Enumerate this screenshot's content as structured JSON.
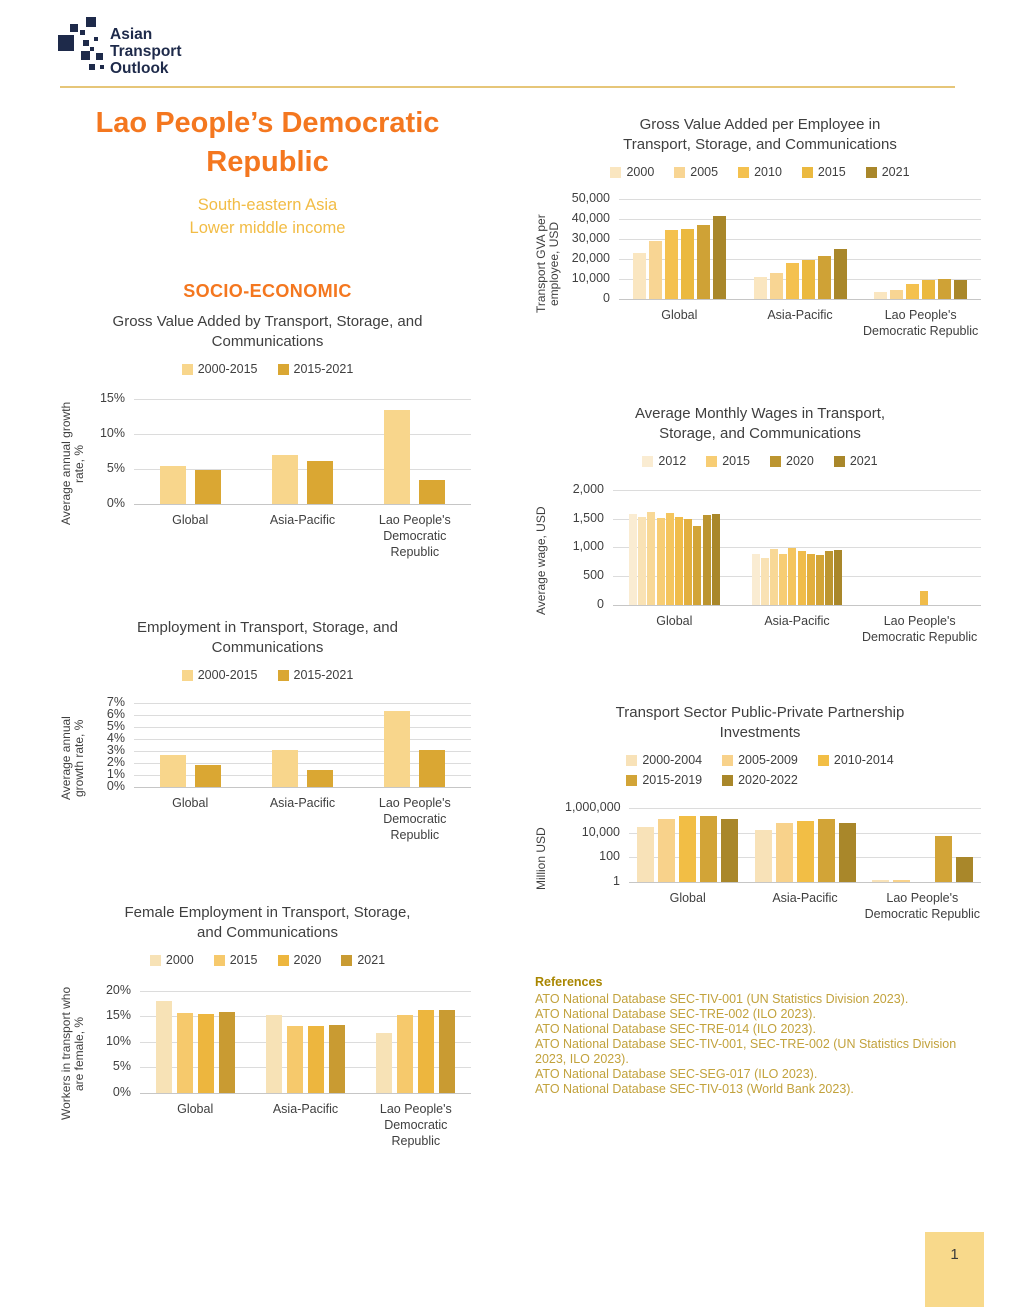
{
  "page": {
    "page_number": "1"
  },
  "header": {
    "logo_lines": [
      "Asian",
      "Transport",
      "Outlook"
    ]
  },
  "title_block": {
    "title": "Lao People’s Democratic Republic",
    "region": "South-eastern Asia",
    "income": "Lower middle income",
    "section": "SOCIO-ECONOMIC"
  },
  "colors": {
    "title_orange": "#F4771F",
    "subtitle_gold": "#F2BC45",
    "logo_navy": "#1E2A4A",
    "rule_gold": "#E6C679",
    "reference_heading": "#A98600",
    "reference_gold": "#C2A23C",
    "grid": "#DCDCDC",
    "axis_text": "#3F3F3F",
    "page_tab_bg": "#F8D98B"
  },
  "chart_data": [
    {
      "type": "bar",
      "title": "Gross Value Added by Transport, Storage, and Communications",
      "ylabel": "Average annual growth rate, %",
      "scale": "linear",
      "ylim": [
        0,
        16
      ],
      "grid": true,
      "legend_position": "top",
      "ticks": [
        {
          "v": 0,
          "label": "0%"
        },
        {
          "v": 5,
          "label": "5%"
        },
        {
          "v": 10,
          "label": "10%"
        },
        {
          "v": 15,
          "label": "15%"
        }
      ],
      "categories": [
        "Global",
        "Asia-Pacific",
        "Lao People's Democratic Republic"
      ],
      "series": [
        {
          "name": "2000-2015",
          "color": "#F8D68C",
          "values": [
            5.5,
            7.0,
            13.4
          ]
        },
        {
          "name": "2015-2021",
          "color": "#DAA733",
          "values": [
            4.9,
            6.1,
            3.4
          ]
        }
      ],
      "legend": [
        {
          "label": "2000-2015",
          "color": "#F8D68C"
        },
        {
          "label": "2015-2021",
          "color": "#DAA733"
        }
      ]
    },
    {
      "type": "bar",
      "title": "Employment in Transport, Storage, and Communications",
      "ylabel": "Average annual growth rate, %",
      "scale": "linear",
      "ylim": [
        0,
        7.4
      ],
      "grid": true,
      "legend_position": "top",
      "ticks": [
        {
          "v": 0,
          "label": "0%"
        },
        {
          "v": 1,
          "label": "1%"
        },
        {
          "v": 2,
          "label": "2%"
        },
        {
          "v": 3,
          "label": "3%"
        },
        {
          "v": 4,
          "label": "4%"
        },
        {
          "v": 5,
          "label": "5%"
        },
        {
          "v": 6,
          "label": "6%"
        },
        {
          "v": 7,
          "label": "7%"
        }
      ],
      "categories": [
        "Global",
        "Asia-Pacific",
        "Lao People's Democratic Republic"
      ],
      "series": [
        {
          "name": "2000-2015",
          "color": "#F8D68C",
          "values": [
            2.7,
            3.1,
            6.3
          ]
        },
        {
          "name": "2015-2021",
          "color": "#DAA733",
          "values": [
            1.8,
            1.4,
            3.1
          ]
        }
      ],
      "legend": [
        {
          "label": "2000-2015",
          "color": "#F8D68C"
        },
        {
          "label": "2015-2021",
          "color": "#DAA733"
        }
      ]
    },
    {
      "type": "bar",
      "title": "Female Employment in Transport, Storage, and Communications",
      "ylabel": "Workers in transport who are female, %",
      "scale": "linear",
      "ylim": [
        0,
        21.5
      ],
      "grid": true,
      "legend_position": "top",
      "ticks": [
        {
          "v": 0,
          "label": "0%"
        },
        {
          "v": 5,
          "label": "5%"
        },
        {
          "v": 10,
          "label": "10%"
        },
        {
          "v": 15,
          "label": "15%"
        },
        {
          "v": 20,
          "label": "20%"
        }
      ],
      "categories": [
        "Global",
        "Asia-Pacific",
        "Lao People's Democratic Republic"
      ],
      "series": [
        {
          "name": "2000",
          "color": "#F7E2B6",
          "values": [
            17.9,
            15.2,
            11.7
          ]
        },
        {
          "name": "2015",
          "color": "#F6C96C",
          "values": [
            15.6,
            13.1,
            15.3
          ]
        },
        {
          "name": "2020",
          "color": "#EDB63E",
          "values": [
            15.5,
            13.1,
            16.3
          ]
        },
        {
          "name": "2021",
          "color": "#C99B32",
          "values": [
            15.8,
            13.3,
            16.2
          ]
        }
      ],
      "legend": [
        {
          "label": "2000",
          "color": "#F7E2B6"
        },
        {
          "label": "2015",
          "color": "#F6C96C"
        },
        {
          "label": "2020",
          "color": "#EDB63E"
        },
        {
          "label": "2021",
          "color": "#C99B32"
        }
      ]
    },
    {
      "type": "bar",
      "title": "Gross Value Added per Employee in Transport, Storage, and Communications",
      "ylabel": "Transport GVA per employee, USD",
      "scale": "linear",
      "ylim": [
        0,
        52000
      ],
      "grid": true,
      "legend_position": "top",
      "ticks": [
        {
          "v": 0,
          "label": "0"
        },
        {
          "v": 10000,
          "label": "10,000"
        },
        {
          "v": 20000,
          "label": "20,000"
        },
        {
          "v": 30000,
          "label": "30,000"
        },
        {
          "v": 40000,
          "label": "40,000"
        },
        {
          "v": 50000,
          "label": "50,000"
        }
      ],
      "categories": [
        "Global",
        "Asia-Pacific",
        "Lao People's Democratic Republic"
      ],
      "series": [
        {
          "name": "2000",
          "color": "#FAE6C0",
          "values": [
            23000,
            11200,
            3300
          ]
        },
        {
          "name": "2005",
          "color": "#F8D593",
          "values": [
            29000,
            12800,
            4600
          ]
        },
        {
          "name": "2010",
          "color": "#F4C14F",
          "values": [
            34500,
            18000,
            7700
          ]
        },
        {
          "name": "2015",
          "color": "#EBB93F",
          "values": [
            35000,
            19300,
            9500
          ]
        },
        {
          "name": "",
          "color": "#CFA236",
          "values": [
            37000,
            21300,
            10000
          ]
        },
        {
          "name": "2021",
          "color": "#A9872A",
          "values": [
            41500,
            25000,
            9600
          ]
        }
      ],
      "legend": [
        {
          "label": "2000",
          "color": "#FAE6C0"
        },
        {
          "label": "2005",
          "color": "#F8D593"
        },
        {
          "label": "2010",
          "color": "#F4C14F"
        },
        {
          "label": "2015",
          "color": "#EBB93F"
        },
        {
          "label": "2021",
          "color": "#A9872A"
        }
      ]
    },
    {
      "type": "bar",
      "title": "Average Monthly Wages in Transport, Storage, and Communications",
      "ylabel": "Average wage, USD",
      "scale": "linear",
      "ylim": [
        0,
        2100
      ],
      "grid": true,
      "legend_position": "top",
      "ticks": [
        {
          "v": 0,
          "label": "0"
        },
        {
          "v": 500,
          "label": "500"
        },
        {
          "v": 1000,
          "label": "1,000"
        },
        {
          "v": 1500,
          "label": "1,500"
        },
        {
          "v": 2000,
          "label": "2,000"
        }
      ],
      "categories": [
        "Global",
        "Asia-Pacific",
        "Lao People's Democratic Republic"
      ],
      "series": [
        {
          "name": "2012",
          "color": "#FAECD2",
          "values": [
            1580,
            880,
            null
          ]
        },
        {
          "name": "",
          "color": "#F9E2B4",
          "values": [
            1520,
            810,
            null
          ]
        },
        {
          "name": "",
          "color": "#F8D896",
          "values": [
            1620,
            975,
            null
          ]
        },
        {
          "name": "2015",
          "color": "#F7CD74",
          "values": [
            1510,
            880,
            null
          ]
        },
        {
          "name": "",
          "color": "#F4C55E",
          "values": [
            1600,
            985,
            null
          ]
        },
        {
          "name": "",
          "color": "#F0BC4A",
          "values": [
            1530,
            945,
            250
          ]
        },
        {
          "name": "",
          "color": "#E2AF3E",
          "values": [
            1490,
            890,
            null
          ]
        },
        {
          "name": "",
          "color": "#D2A437",
          "values": [
            1380,
            865,
            null
          ]
        },
        {
          "name": "2020",
          "color": "#BC9530",
          "values": [
            1560,
            945,
            null
          ]
        },
        {
          "name": "2021",
          "color": "#A9872A",
          "values": [
            1580,
            955,
            null
          ]
        }
      ],
      "legend": [
        {
          "label": "2012",
          "color": "#FAECD2"
        },
        {
          "label": "2015",
          "color": "#F7CD74"
        },
        {
          "label": "2020",
          "color": "#BC9530"
        },
        {
          "label": "2021",
          "color": "#A9872A"
        }
      ]
    },
    {
      "type": "bar",
      "title": "Transport Sector Public-Private Partnership Investments",
      "ylabel": "Million USD",
      "scale": "log",
      "ylim": [
        1,
        2500000
      ],
      "grid": true,
      "legend_position": "top",
      "ticks": [
        {
          "v": 1,
          "label": "1"
        },
        {
          "v": 100,
          "label": "100"
        },
        {
          "v": 10000,
          "label": "10,000"
        },
        {
          "v": 1000000,
          "label": "1,000,000"
        }
      ],
      "categories": [
        "Global",
        "Asia-Pacific",
        "Lao People's Democratic Republic"
      ],
      "series": [
        {
          "name": "2000-2004",
          "color": "#F8E2B8",
          "values": [
            28000,
            16000,
            1.5
          ]
        },
        {
          "name": "2005-2009",
          "color": "#F8D28B",
          "values": [
            120000,
            55000,
            1.5
          ]
        },
        {
          "name": "2010-2014",
          "color": "#F2BE45",
          "values": [
            230000,
            95000,
            null
          ]
        },
        {
          "name": "2015-2019",
          "color": "#D2A437",
          "values": [
            210000,
            125000,
            5000
          ]
        },
        {
          "name": "2020-2022",
          "color": "#A9872A",
          "values": [
            120000,
            62000,
            100
          ]
        }
      ],
      "legend": [
        [
          {
            "label": "2000-2004",
            "color": "#F8E2B8"
          },
          {
            "label": "2005-2009",
            "color": "#F8D28B"
          },
          {
            "label": "2010-2014",
            "color": "#F2BE45"
          }
        ],
        [
          {
            "label": "2015-2019",
            "color": "#D2A437"
          },
          {
            "label": "2020-2022",
            "color": "#A9872A"
          }
        ]
      ]
    }
  ],
  "references": {
    "heading": "References",
    "items": [
      "ATO National Database SEC-TIV-001 (UN Statistics Division 2023).",
      "ATO National Database SEC-TRE-002 (ILO 2023).",
      "ATO National Database SEC-TRE-014 (ILO 2023).",
      "ATO National Database SEC-TIV-001, SEC-TRE-002 (UN Statistics Division 2023, ILO 2023).",
      "ATO National Database SEC-SEG-017 (ILO 2023).",
      "ATO National Database SEC-TIV-013 (World Bank 2023)."
    ]
  }
}
